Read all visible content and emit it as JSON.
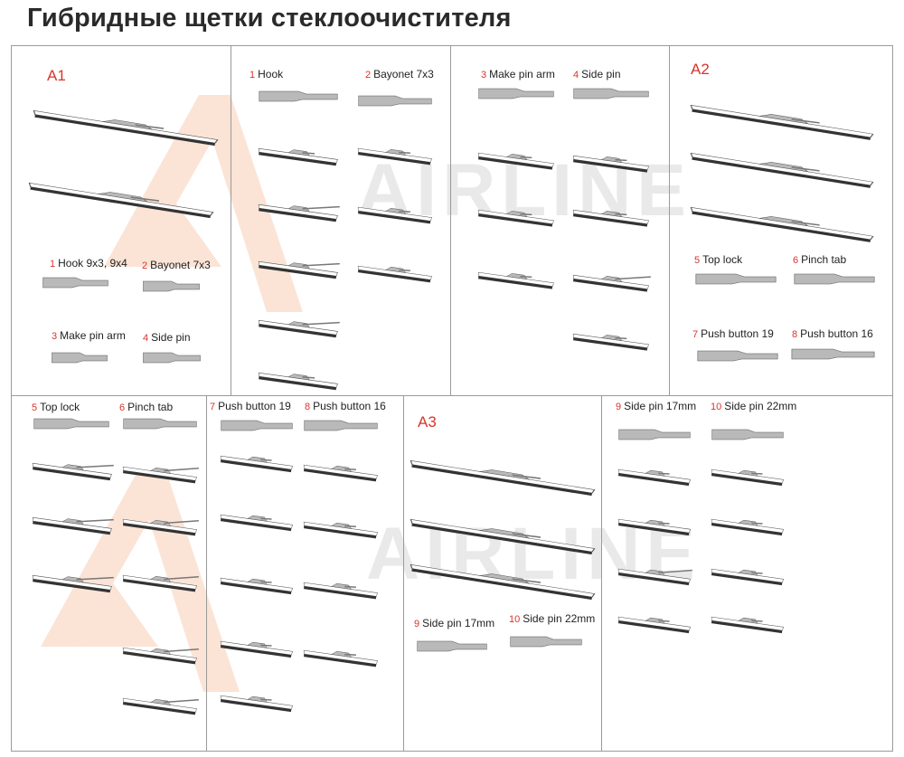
{
  "title": "Гибридные щетки стеклоочистителя",
  "watermark": {
    "brand": "AIRLINE",
    "accent_color": "#f5c9b0"
  },
  "colors": {
    "number": "#d9342b",
    "part": "#b9b9b9",
    "outline": "#555555"
  },
  "panel_a1": {
    "heading": "A1",
    "labels": [
      {
        "num": "1",
        "text": "Hook 9x3, 9x4"
      },
      {
        "num": "2",
        "text": "Bayonet 7x3"
      },
      {
        "num": "3",
        "text": "Make pin arm"
      },
      {
        "num": "4",
        "text": "Side pin"
      }
    ]
  },
  "panel_hook_bayonet": {
    "labels": [
      {
        "num": "1",
        "text": "Hook"
      },
      {
        "num": "2",
        "text": "Bayonet 7x3"
      }
    ]
  },
  "panel_pin": {
    "labels": [
      {
        "num": "3",
        "text": "Make pin arm"
      },
      {
        "num": "4",
        "text": "Side pin"
      }
    ]
  },
  "panel_a2": {
    "heading": "A2",
    "labels": [
      {
        "num": "5",
        "text": "Top lock"
      },
      {
        "num": "6",
        "text": "Pinch tab"
      },
      {
        "num": "7",
        "text": "Push button 19"
      },
      {
        "num": "8",
        "text": "Push button 16"
      }
    ]
  },
  "panel_top_pinch": {
    "labels": [
      {
        "num": "5",
        "text": "Top lock"
      },
      {
        "num": "6",
        "text": "Pinch tab"
      }
    ]
  },
  "panel_push": {
    "labels": [
      {
        "num": "7",
        "text": "Push button 19"
      },
      {
        "num": "8",
        "text": "Push button 16"
      }
    ]
  },
  "panel_a3": {
    "heading": "A3",
    "labels": [
      {
        "num": "9",
        "text": "Side pin 17mm"
      },
      {
        "num": "10",
        "text": "Side pin 22mm"
      }
    ]
  },
  "panel_side_pin": {
    "labels": [
      {
        "num": "9",
        "text": "Side pin 17mm"
      },
      {
        "num": "10",
        "text": "Side pin 22mm"
      }
    ]
  }
}
